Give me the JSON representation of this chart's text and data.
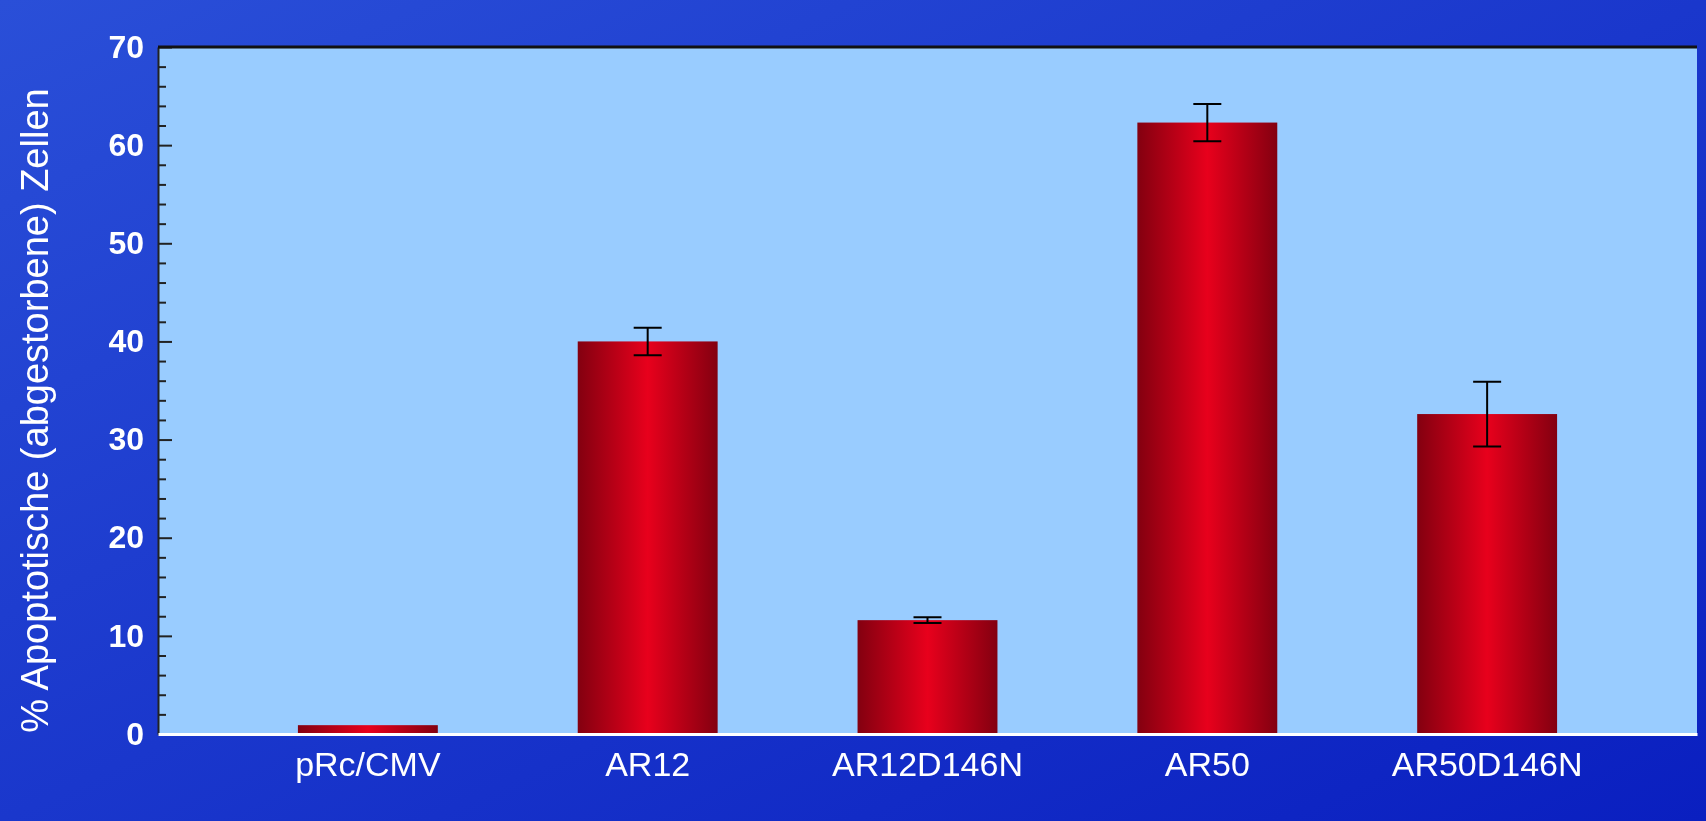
{
  "chart_data": {
    "type": "bar",
    "ylabel": "% Apoptotische (abgestorbene) Zellen",
    "categories": [
      "pRc/CMV",
      "AR12",
      "AR12D146N",
      "AR50",
      "AR50D146N"
    ],
    "values": [
      0.9,
      40,
      11.6,
      62.3,
      32.6
    ],
    "errors": [
      null,
      1.4,
      0.3,
      1.9,
      3.3
    ],
    "color": "#e8001c",
    "ylim": [
      0,
      70
    ],
    "yticks": [
      0,
      {
        "value": 2,
        "label": null
      },
      {
        "value": 4,
        "label": null
      },
      {
        "value": 6,
        "label": null
      },
      {
        "value": 8,
        "label": null
      },
      10,
      {
        "value": 12,
        "label": null
      },
      {
        "value": 14,
        "label": null
      },
      {
        "value": 16,
        "label": null
      },
      {
        "value": 18,
        "label": null
      },
      20,
      {
        "value": 22,
        "label": null
      },
      {
        "value": 24,
        "label": null
      },
      {
        "value": 26,
        "label": null
      },
      {
        "value": 28,
        "label": null
      },
      30,
      {
        "value": 32,
        "label": null
      },
      {
        "value": 34,
        "label": null
      },
      {
        "value": 36,
        "label": null
      },
      {
        "value": 38,
        "label": null
      },
      40,
      {
        "value": 42,
        "label": null
      },
      {
        "value": 44,
        "label": null
      },
      {
        "value": 46,
        "label": null
      },
      {
        "value": 48,
        "label": null
      },
      50,
      {
        "value": 52,
        "label": null
      },
      {
        "value": 54,
        "label": null
      },
      {
        "value": 56,
        "label": null
      },
      {
        "value": 58,
        "label": null
      },
      60,
      {
        "value": 62,
        "label": null
      },
      {
        "value": 64,
        "label": null
      },
      {
        "value": 66,
        "label": null
      },
      {
        "value": 68,
        "label": null
      },
      70
    ],
    "grid": false
  }
}
